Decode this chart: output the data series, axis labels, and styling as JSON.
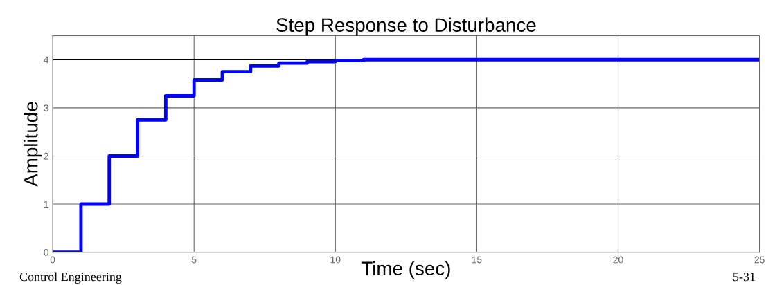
{
  "chart_data": {
    "type": "step",
    "title": "Step Response to Disturbance",
    "xlabel": "Time (sec)",
    "ylabel": "Amplitude",
    "x": [
      0,
      1,
      2,
      3,
      4,
      5,
      6,
      7,
      8,
      9,
      10,
      11,
      25
    ],
    "series": [
      {
        "color": "#0000ff",
        "values": [
          0,
          1,
          2,
          2.75,
          3.25,
          3.58,
          3.75,
          3.87,
          3.93,
          3.96,
          3.98,
          4.0,
          4.0
        ]
      }
    ],
    "xlim": [
      0,
      25
    ],
    "ylim": [
      0,
      4.5
    ],
    "xticks": [
      0,
      5,
      10,
      15,
      20,
      25
    ],
    "yticks": [
      0,
      1,
      2,
      3,
      4
    ],
    "ref_lines": [
      {
        "axis": "y",
        "value": 4,
        "color": "#000000"
      }
    ],
    "grid": true,
    "legend": false,
    "annotations": [
      "Control Engineering",
      "5-31"
    ]
  }
}
